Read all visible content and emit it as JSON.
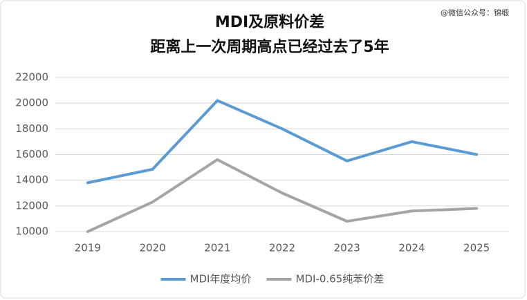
{
  "chart_data": {
    "type": "line",
    "title": "MDI及原料价差",
    "subtitle": "距离上一次周期高点已经过去了5年",
    "watermark": "@微信公众号：锦缎",
    "categories": [
      "2019",
      "2020",
      "2021",
      "2022",
      "2023",
      "2024",
      "2025"
    ],
    "series": [
      {
        "name": "MDI年度均价",
        "color": "#5b9bd5",
        "values": [
          13800,
          14850,
          20200,
          18000,
          15500,
          17000,
          16000
        ]
      },
      {
        "name": "MDI-0.65纯苯价差",
        "color": "#a5a5a5",
        "values": [
          10000,
          12300,
          15600,
          13000,
          10800,
          11600,
          11800
        ]
      }
    ],
    "ylim": [
      10000,
      22000
    ],
    "yticks": [
      10000,
      12000,
      14000,
      16000,
      18000,
      20000,
      22000
    ],
    "grid": true,
    "legend": "bottom"
  }
}
